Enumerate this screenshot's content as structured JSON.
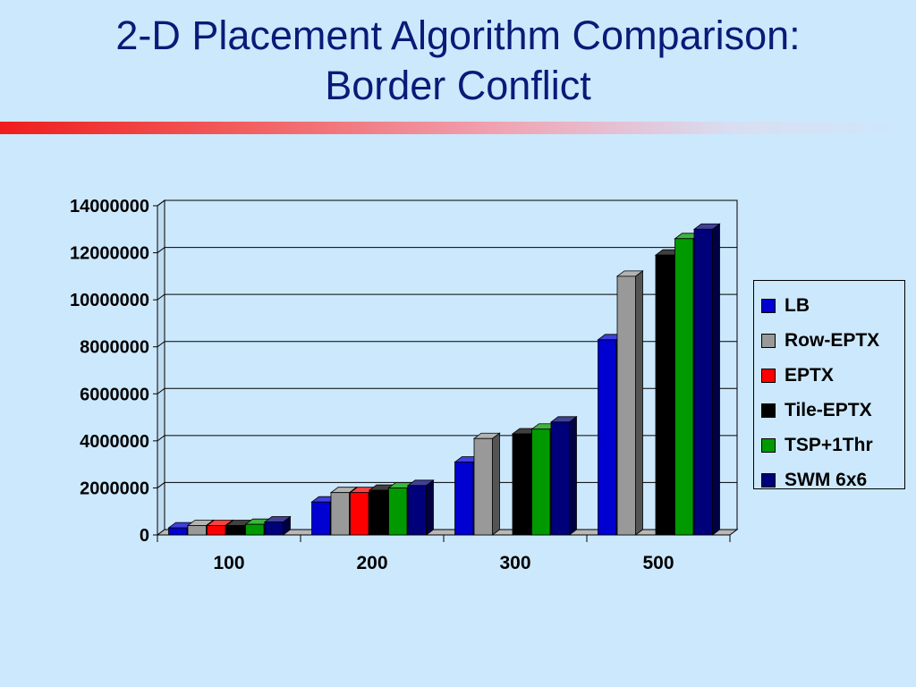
{
  "slide": {
    "title_line1": "2-D Placement Algorithm Comparison:",
    "title_line2": "Border Conflict"
  },
  "chart_data": {
    "type": "bar",
    "style": "3d-clustered-column",
    "categories": [
      "100",
      "200",
      "300",
      "500"
    ],
    "ylim": [
      0,
      14000000
    ],
    "yticks": [
      "0",
      "2000000",
      "4000000",
      "6000000",
      "8000000",
      "10000000",
      "12000000",
      "14000000"
    ],
    "grid": true,
    "legend_position": "right",
    "series": [
      {
        "name": "LB",
        "color": "#0000d0",
        "values": [
          300000,
          1400000,
          3100000,
          8300000
        ]
      },
      {
        "name": "Row-EPTX",
        "color": "#999999",
        "values": [
          400000,
          1800000,
          4100000,
          11000000
        ]
      },
      {
        "name": "EPTX",
        "color": "#ff0000",
        "values": [
          400000,
          1800000,
          0,
          0
        ]
      },
      {
        "name": "Tile-EPTX",
        "color": "#000000",
        "values": [
          400000,
          1900000,
          4300000,
          11900000
        ]
      },
      {
        "name": "TSP+1Thr",
        "color": "#009a00",
        "values": [
          450000,
          2000000,
          4500000,
          12600000
        ]
      },
      {
        "name": "SWM 6x6",
        "color": "#00007a",
        "values": [
          550000,
          2100000,
          4800000,
          13000000
        ]
      }
    ]
  }
}
